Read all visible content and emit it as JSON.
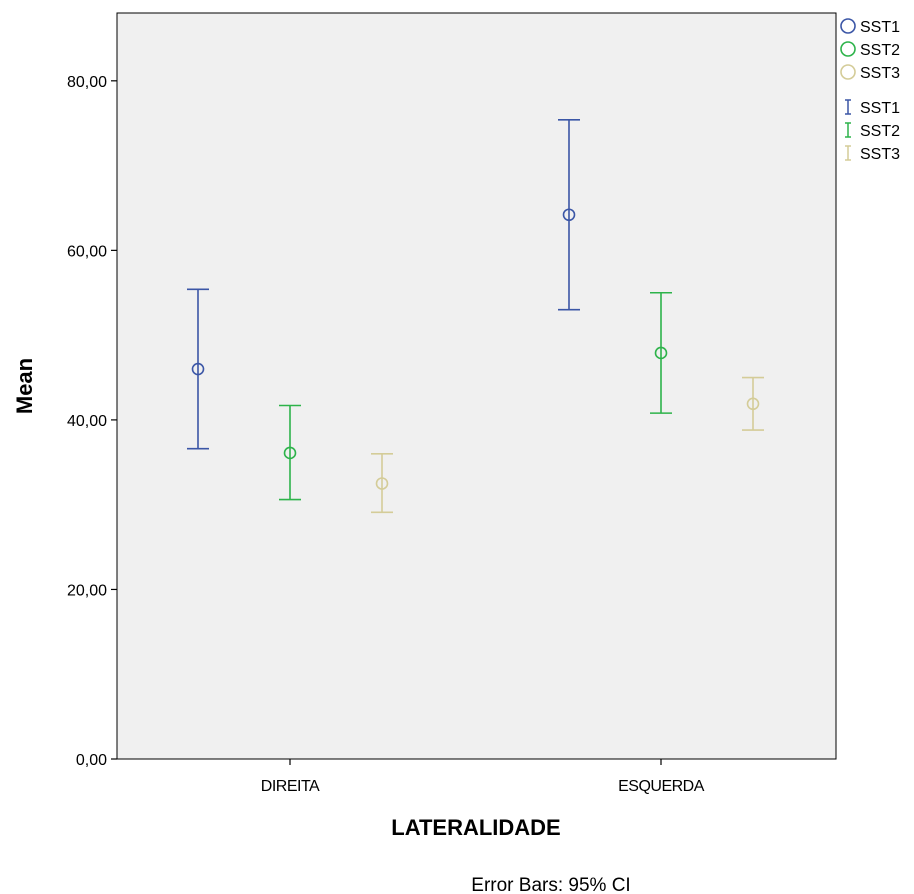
{
  "chart_data": {
    "type": "scatter",
    "categories": [
      "DIREITA",
      "ESQUERDA"
    ],
    "xlabel": "LATERALIDADE",
    "ylabel": "Mean",
    "ylim": [
      0,
      88
    ],
    "yticks": [
      "0,00",
      "20,00",
      "40,00",
      "60,00",
      "80,00"
    ],
    "ytick_values": [
      0,
      20,
      40,
      60,
      80
    ],
    "grid": false,
    "legend_position": "top-right, outside plot",
    "note": "Error Bars: 95% CI",
    "series": [
      {
        "name": "SST1",
        "color": "#3b56a6",
        "means": [
          46.0,
          64.2
        ],
        "ci_lower": [
          36.6,
          53.0
        ],
        "ci_upper": [
          55.4,
          75.4
        ]
      },
      {
        "name": "SST2",
        "color": "#2db34a",
        "means": [
          36.1,
          47.9
        ],
        "ci_lower": [
          30.6,
          40.8
        ],
        "ci_upper": [
          41.7,
          55.0
        ]
      },
      {
        "name": "SST3",
        "color": "#d4cc98",
        "means": [
          32.5,
          41.9
        ],
        "ci_lower": [
          29.1,
          38.8
        ],
        "ci_upper": [
          36.0,
          45.0
        ]
      }
    ],
    "legend": {
      "marker_entries": [
        "SST1",
        "SST2",
        "SST3"
      ],
      "errorbar_entries": [
        "SST1",
        "SST2",
        "SST3"
      ]
    }
  }
}
